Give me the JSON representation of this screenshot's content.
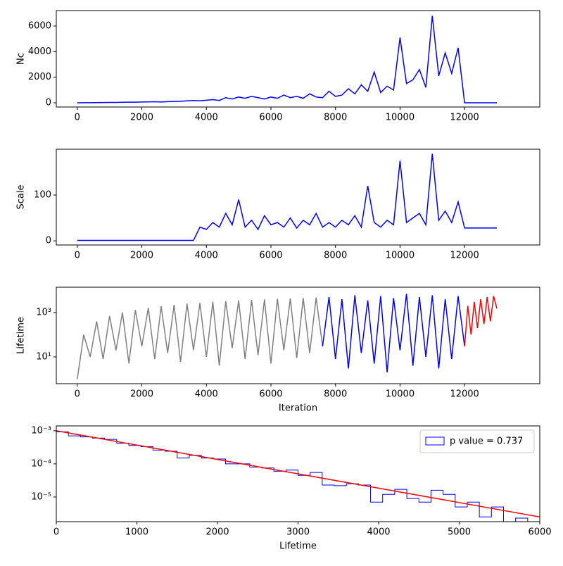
{
  "chart_data": [
    {
      "type": "line",
      "ylabel": "Nc",
      "xlim": [
        -650,
        14330
      ],
      "xticks": [
        0,
        2000,
        4000,
        6000,
        8000,
        10000,
        12000
      ],
      "ylim": [
        -330,
        7210
      ],
      "yticks": [
        0,
        2000,
        4000,
        6000
      ],
      "series": [
        {
          "color": "#0000ff",
          "x": [
            0,
            200,
            400,
            600,
            800,
            1000,
            1200,
            1400,
            1600,
            1800,
            2000,
            2200,
            2400,
            2600,
            2800,
            3000,
            3200,
            3400,
            3600,
            3800,
            4000,
            4200,
            4400,
            4600,
            4800,
            5000,
            5200,
            5400,
            5600,
            5800,
            6000,
            6200,
            6400,
            6600,
            6800,
            7000,
            7200,
            7400,
            7600,
            7800,
            8000,
            8200,
            8400,
            8600,
            8800,
            9000,
            9200,
            9400,
            9600,
            9800,
            10000,
            10200,
            10400,
            10600,
            10800,
            11000,
            11200,
            11400,
            11600,
            11800,
            12000,
            12200,
            12400,
            12600,
            12800,
            13000
          ],
          "values": [
            0,
            5,
            10,
            15,
            20,
            30,
            25,
            40,
            50,
            45,
            60,
            70,
            80,
            60,
            90,
            100,
            120,
            150,
            180,
            150,
            200,
            250,
            180,
            400,
            300,
            450,
            350,
            500,
            400,
            300,
            450,
            350,
            600,
            400,
            500,
            350,
            700,
            450,
            400,
            900,
            500,
            600,
            1100,
            700,
            1400,
            900,
            2400,
            800,
            1300,
            1000,
            5100,
            1500,
            1800,
            2600,
            1200,
            6800,
            2100,
            3900,
            2300,
            4300,
            0,
            0,
            0,
            0,
            0,
            0
          ]
        }
      ]
    },
    {
      "type": "line",
      "ylabel": "Scale",
      "xlim": [
        -650,
        14330
      ],
      "xticks": [
        0,
        2000,
        4000,
        6000,
        8000,
        10000,
        12000
      ],
      "ylim": [
        -9,
        200
      ],
      "yticks": [
        0,
        100
      ],
      "series": [
        {
          "color": "#0000ff",
          "x": [
            0,
            200,
            400,
            600,
            800,
            1000,
            1200,
            1400,
            1600,
            1800,
            2000,
            2200,
            2400,
            2600,
            2800,
            3000,
            3200,
            3400,
            3600,
            3800,
            4000,
            4200,
            4400,
            4600,
            4800,
            5000,
            5200,
            5400,
            5600,
            5800,
            6000,
            6200,
            6400,
            6600,
            6800,
            7000,
            7200,
            7400,
            7600,
            7800,
            8000,
            8200,
            8400,
            8600,
            8800,
            9000,
            9200,
            9400,
            9600,
            9800,
            10000,
            10200,
            10400,
            10600,
            10800,
            11000,
            11200,
            11400,
            11600,
            11800,
            12000,
            12200,
            12400,
            12600,
            12800,
            13000
          ],
          "values": [
            1,
            1,
            1,
            1,
            1,
            1,
            1,
            1,
            1,
            1,
            1,
            1,
            1,
            1,
            1,
            1,
            1,
            1,
            1,
            30,
            25,
            40,
            30,
            60,
            35,
            90,
            30,
            45,
            25,
            55,
            35,
            40,
            30,
            50,
            28,
            45,
            35,
            60,
            30,
            40,
            30,
            45,
            35,
            55,
            30,
            120,
            40,
            30,
            45,
            35,
            175,
            40,
            50,
            60,
            35,
            190,
            45,
            65,
            40,
            85,
            28,
            28,
            28,
            28,
            28,
            28
          ]
        }
      ]
    },
    {
      "type": "line",
      "ylabel": "Lifetime",
      "xlabel": "Iteration",
      "ylog": true,
      "xlim": [
        -650,
        14330
      ],
      "xticks": [
        0,
        2000,
        4000,
        6000,
        8000,
        10000,
        12000
      ],
      "ylim": [
        0.62,
        13800
      ],
      "yticks": [
        {
          "value": 10,
          "label": "10¹"
        },
        {
          "value": 1000,
          "label": "10³"
        }
      ],
      "series": [
        {
          "color": "#808080",
          "x": [
            0,
            200,
            400,
            600,
            800,
            1000,
            1200,
            1400,
            1600,
            1800,
            2000,
            2200,
            2400,
            2600,
            2800,
            3000,
            3200,
            3400,
            3600,
            3800,
            4000,
            4200,
            4400,
            4600,
            4800,
            5000,
            5200,
            5400,
            5600,
            5800,
            6000,
            6200,
            6400,
            6600,
            6800,
            7000,
            7200,
            7400,
            7600
          ],
          "values": [
            1,
            100,
            10,
            400,
            8,
            700,
            20,
            1000,
            5,
            1300,
            30,
            1600,
            8,
            1900,
            15,
            2200,
            6,
            2500,
            20,
            2700,
            10,
            3000,
            4,
            3200,
            25,
            3500,
            8,
            3700,
            12,
            3900,
            5,
            4100,
            20,
            4300,
            9,
            4500,
            15,
            4700,
            30
          ]
        },
        {
          "color": "#0000ff",
          "x": [
            7600,
            7800,
            8000,
            8200,
            8400,
            8600,
            8800,
            9000,
            9200,
            9400,
            9600,
            9800,
            10000,
            10200,
            10400,
            10600,
            10800,
            11000,
            11200,
            11400,
            11600,
            11800,
            12000
          ],
          "values": [
            30,
            5000,
            8,
            4000,
            3,
            6000,
            15,
            3500,
            5,
            5500,
            2,
            4500,
            20,
            7000,
            4,
            5000,
            10,
            6000,
            3,
            4000,
            8,
            5500,
            30
          ]
        },
        {
          "color": "#ff0000",
          "x": [
            12000,
            12100,
            12200,
            12300,
            12400,
            12500,
            12600,
            12700,
            12800,
            12900,
            13000
          ],
          "values": [
            30,
            2000,
            100,
            3000,
            200,
            4000,
            300,
            5000,
            400,
            5500,
            1500
          ]
        }
      ]
    },
    {
      "type": "histogram",
      "xlabel": "Lifetime",
      "ylog": true,
      "xlim": [
        0,
        6000
      ],
      "xticks": [
        0,
        1000,
        2000,
        3000,
        4000,
        5000,
        6000
      ],
      "ylim": [
        1.8e-06,
        0.0014
      ],
      "yticks": [
        {
          "value": 1e-05,
          "label": "10⁻⁵"
        },
        {
          "value": 0.0001,
          "label": "10⁻⁴"
        },
        {
          "value": 0.001,
          "label": "10⁻³"
        }
      ],
      "legend": "upper right",
      "series": [
        {
          "name": "p value = 0.737",
          "color": "#0000ff",
          "bins": [
            0,
            150,
            300,
            450,
            600,
            750,
            900,
            1050,
            1200,
            1350,
            1500,
            1650,
            1800,
            1950,
            2100,
            2250,
            2400,
            2550,
            2700,
            2850,
            3000,
            3150,
            3300,
            3450,
            3600,
            3750,
            3900,
            4050,
            4200,
            4350,
            4500,
            4650,
            4800,
            4950,
            5100,
            5250,
            5400,
            5550,
            5700,
            5850,
            6000
          ],
          "values": [
            0.00093,
            0.0007,
            0.00065,
            0.0006,
            0.00055,
            0.00042,
            0.00036,
            0.00033,
            0.00026,
            0.00024,
            0.00015,
            0.00018,
            0.00015,
            0.00014,
            0.0001,
            0.0001,
            8e-05,
            7.5e-05,
            6e-05,
            6.5e-05,
            4.5e-05,
            5.5e-05,
            2.3e-05,
            2.2e-05,
            2.5e-05,
            2.3e-05,
            7e-06,
            1.2e-05,
            1.7e-05,
            9e-06,
            7e-06,
            1.6e-05,
            1.2e-05,
            5e-06,
            7e-06,
            2.5e-06,
            5e-06,
            0,
            2.3e-06,
            0
          ]
        }
      ],
      "fit": {
        "color": "#ff0000",
        "x": [
          0,
          6000
        ],
        "values": [
          0.001,
          2.5e-06
        ]
      }
    }
  ]
}
